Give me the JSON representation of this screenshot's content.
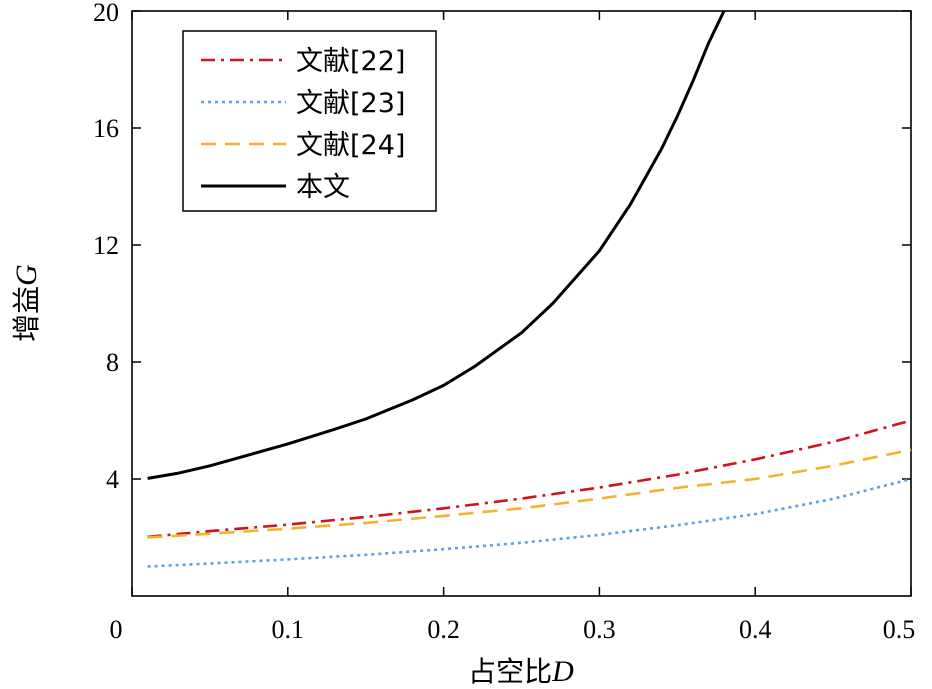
{
  "chart_data": {
    "type": "line",
    "title": "",
    "xlabel": "占空比",
    "xlabel_var": "D",
    "ylabel": "增益",
    "ylabel_var": "G",
    "xlim": [
      0,
      0.5
    ],
    "ylim": [
      0,
      20
    ],
    "x_ticks": [
      0,
      0.1,
      0.2,
      0.3,
      0.4,
      0.5
    ],
    "x_tick_labels": [
      "0",
      "0.1",
      "0.2",
      "0.3",
      "0.4",
      "0.5"
    ],
    "y_ticks": [
      4,
      8,
      12,
      16,
      20
    ],
    "y_tick_labels": [
      "4",
      "8",
      "12",
      "16",
      "20"
    ],
    "grid": false,
    "legend_position": "top-left",
    "series": [
      {
        "name": "文献[22]",
        "color": "#d0141e",
        "style": "dashdot",
        "x": [
          0.01,
          0.05,
          0.1,
          0.15,
          0.2,
          0.25,
          0.3,
          0.35,
          0.4,
          0.45,
          0.5
        ],
        "y": [
          2.02,
          2.22,
          2.44,
          2.7,
          3.0,
          3.33,
          3.71,
          4.15,
          4.67,
          5.27,
          6.0
        ]
      },
      {
        "name": "文献[23]",
        "color": "#5aa0e6",
        "style": "dotted",
        "x": [
          0.01,
          0.05,
          0.1,
          0.15,
          0.2,
          0.25,
          0.3,
          0.35,
          0.4,
          0.45,
          0.5
        ],
        "y": [
          1.01,
          1.11,
          1.25,
          1.41,
          1.6,
          1.82,
          2.09,
          2.42,
          2.8,
          3.32,
          4.0
        ]
      },
      {
        "name": "文献[24]",
        "color": "#f4b12e",
        "style": "dashed",
        "x": [
          0.01,
          0.05,
          0.1,
          0.15,
          0.2,
          0.25,
          0.3,
          0.35,
          0.4,
          0.45,
          0.5
        ],
        "y": [
          2.0,
          2.13,
          2.3,
          2.5,
          2.74,
          3.0,
          3.33,
          3.7,
          4.0,
          4.45,
          5.0
        ]
      },
      {
        "name": "本文",
        "color": "#000000",
        "style": "solid",
        "x": [
          0.01,
          0.03,
          0.05,
          0.08,
          0.1,
          0.13,
          0.15,
          0.18,
          0.2,
          0.22,
          0.25,
          0.27,
          0.3,
          0.32,
          0.34,
          0.35,
          0.36,
          0.37,
          0.38
        ],
        "y": [
          4.02,
          4.2,
          4.45,
          4.9,
          5.2,
          5.7,
          6.05,
          6.7,
          7.2,
          7.85,
          9.0,
          10.0,
          11.8,
          13.4,
          15.3,
          16.4,
          17.6,
          18.9,
          20.0
        ]
      }
    ]
  }
}
